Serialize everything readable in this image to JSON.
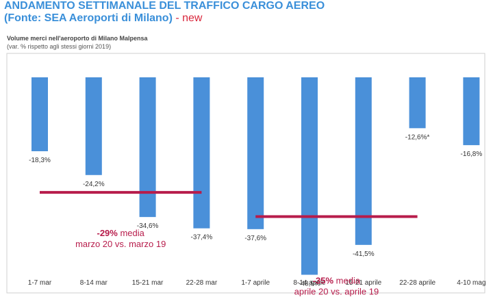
{
  "header": {
    "title_line1": "ANDAMENTO SETTIMANALE DEL TRAFFICO CARGO AEREO",
    "title_line2": "(Fonte: SEA Aeroporti di Milano)",
    "title_sep": " - ",
    "title_badge": "new"
  },
  "chart_data": {
    "type": "bar",
    "title": "Volume merci nell'aeroporto di Milano Malpensa",
    "subtitle": "(var. % rispetto agli stessi giorni 2019)",
    "categories": [
      "1-7 mar",
      "8-14 mar",
      "15-21 mar",
      "22-28 mar",
      "1-7 aprile",
      "8-14 aprile",
      "15-21 aprile",
      "22-28 aprile",
      "4-10 mag"
    ],
    "values": [
      -18.3,
      -24.2,
      -34.6,
      -37.4,
      -37.6,
      -48.9,
      -41.5,
      -12.6,
      -16.8
    ],
    "data_labels": [
      "-18,3%",
      "-24,2%",
      "-34,6%",
      "-37,4%",
      "-37,6%",
      "-48,9%",
      "-41,5%",
      "-12,6%*",
      "-16,8%"
    ],
    "ylim": [
      -55,
      0
    ],
    "bar_color": "#4a90d9",
    "grid": false,
    "annotations": [
      {
        "value_text": "-29%",
        "label_text": " media",
        "line2": "marzo 20 vs. marzo 19",
        "from_index": 0,
        "to_index": 3,
        "level": -29,
        "color": "#b71c4b"
      },
      {
        "value_text": "-35%",
        "label_text": " media",
        "line2": "aprile 20 vs. aprile 19",
        "from_index": 4,
        "to_index": 7,
        "level": -35,
        "color": "#b71c4b"
      }
    ]
  }
}
